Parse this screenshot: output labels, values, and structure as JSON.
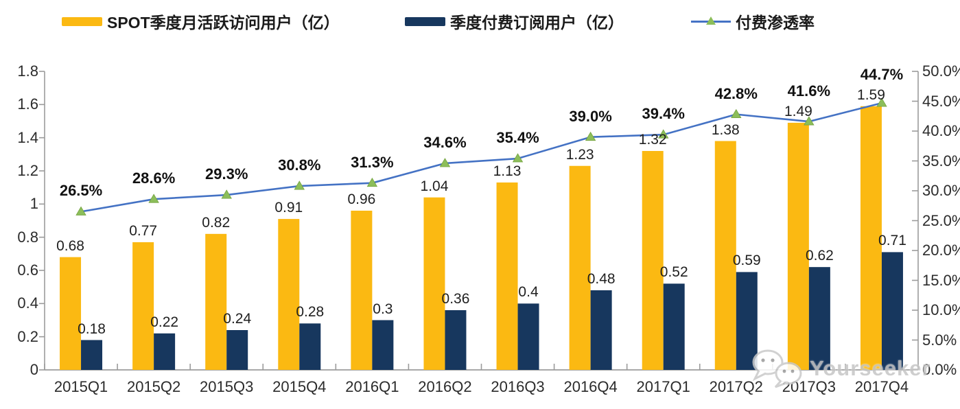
{
  "legend": [
    {
      "label": "SPOT季度月活跃访问用户（亿）",
      "swatch": "bar",
      "color": "#FBB912"
    },
    {
      "label": "季度付费订阅用户（亿）",
      "swatch": "bar",
      "color": "#17375E"
    },
    {
      "label": "付费渗透率",
      "swatch": "line",
      "color": "#4472C4",
      "marker_color": "#8CBE5A"
    }
  ],
  "chart_data": {
    "type": "bar",
    "title": "",
    "categories": [
      "2015Q1",
      "2015Q2",
      "2015Q3",
      "2015Q4",
      "2016Q1",
      "2016Q2",
      "2016Q3",
      "2016Q4",
      "2017Q1",
      "2017Q2",
      "2017Q3",
      "2017Q4"
    ],
    "series": [
      {
        "name": "SPOT季度月活跃访问用户（亿）",
        "type": "bar",
        "axis": "left",
        "color": "#FBB912",
        "values": [
          0.68,
          0.77,
          0.82,
          0.91,
          0.96,
          1.04,
          1.13,
          1.23,
          1.32,
          1.38,
          1.49,
          1.59
        ],
        "labels": [
          "0.68",
          "0.77",
          "0.82",
          "0.91",
          "0.96",
          "1.04",
          "1.13",
          "1.23",
          "1.32",
          "1.38",
          "1.49",
          "1.59"
        ]
      },
      {
        "name": "季度付费订阅用户（亿）",
        "type": "bar",
        "axis": "left",
        "color": "#17375E",
        "values": [
          0.18,
          0.22,
          0.24,
          0.28,
          0.3,
          0.36,
          0.4,
          0.48,
          0.52,
          0.59,
          0.62,
          0.71
        ],
        "labels": [
          "0.18",
          "0.22",
          "0.24",
          "0.28",
          "0.3",
          "0.36",
          "0.4",
          "0.48",
          "0.52",
          "0.59",
          "0.62",
          "0.71"
        ]
      },
      {
        "name": "付费渗透率",
        "type": "line",
        "axis": "right",
        "color": "#4472C4",
        "marker": "triangle",
        "marker_color": "#8CBE5A",
        "values": [
          26.5,
          28.6,
          29.3,
          30.8,
          31.3,
          34.6,
          35.4,
          39.0,
          39.4,
          42.8,
          41.6,
          44.7
        ],
        "labels": [
          "26.5%",
          "28.6%",
          "29.3%",
          "30.8%",
          "31.3%",
          "34.6%",
          "35.4%",
          "39.0%",
          "39.4%",
          "42.8%",
          "41.6%",
          "44.7%"
        ]
      }
    ],
    "left_axis": {
      "min": 0,
      "max": 1.8,
      "tick_labels": [
        "1.8",
        "1.6",
        "1.4",
        "1.2",
        "1",
        "0.8",
        "0.6",
        "0.4",
        "0.2",
        "0"
      ]
    },
    "right_axis": {
      "min": 0,
      "max": 50,
      "tick_labels": [
        "50.0%",
        "45.0%",
        "40.0%",
        "35.0%",
        "30.0%",
        "25.0%",
        "20.0%",
        "15.0%",
        "10.0%",
        "5.0%",
        "0.0%"
      ]
    },
    "grid": false,
    "legend_position": "top",
    "axis_color": "#9b9b9b"
  },
  "watermark": {
    "text": "Yourseeker",
    "icon": "wechat-icon"
  }
}
